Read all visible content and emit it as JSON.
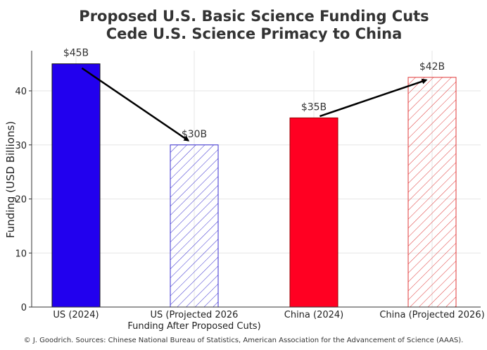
{
  "chart_data": {
    "type": "bar",
    "title": "Proposed U.S. Basic Science Funding Cuts\nCede U.S. Science Primacy to China",
    "title_lines": [
      "Proposed U.S. Basic Science Funding Cuts",
      "Cede U.S. Science Primacy to China"
    ],
    "xlabel": "",
    "ylabel": "Funding (USD Billions)",
    "ylim": [
      0,
      47.5
    ],
    "yticks": [
      0,
      10,
      20,
      30,
      40
    ],
    "grid": true,
    "categories": [
      [
        "US (2024)"
      ],
      [
        "US (Projected 2026",
        "Funding After Proposed Cuts)"
      ],
      [
        "China (2024)"
      ],
      [
        "China (Projected 2026)"
      ]
    ],
    "values": [
      45,
      30,
      35,
      42.5
    ],
    "data_labels": [
      "$45B",
      "$30B",
      "$35B",
      "$42B"
    ],
    "bar_styles": [
      {
        "fill": "#2200ee",
        "hatched": false,
        "edge": "#111111"
      },
      {
        "fill": "none",
        "hatched": true,
        "edge": "#3a2fd0"
      },
      {
        "fill": "#ff0022",
        "hatched": false,
        "edge": "#990000"
      },
      {
        "fill": "none",
        "hatched": true,
        "edge": "#e03a3a"
      }
    ],
    "arrows": [
      {
        "from": [
          0.05,
          44.2
        ],
        "to": [
          0.95,
          30.8
        ]
      },
      {
        "from": [
          2.05,
          35.3
        ],
        "to": [
          2.95,
          42.0
        ]
      }
    ],
    "footnote": "© J. Goodrich. Sources: Chinese National Bureau of Statistics, American Association for the Advancement of Science (AAAS)."
  }
}
